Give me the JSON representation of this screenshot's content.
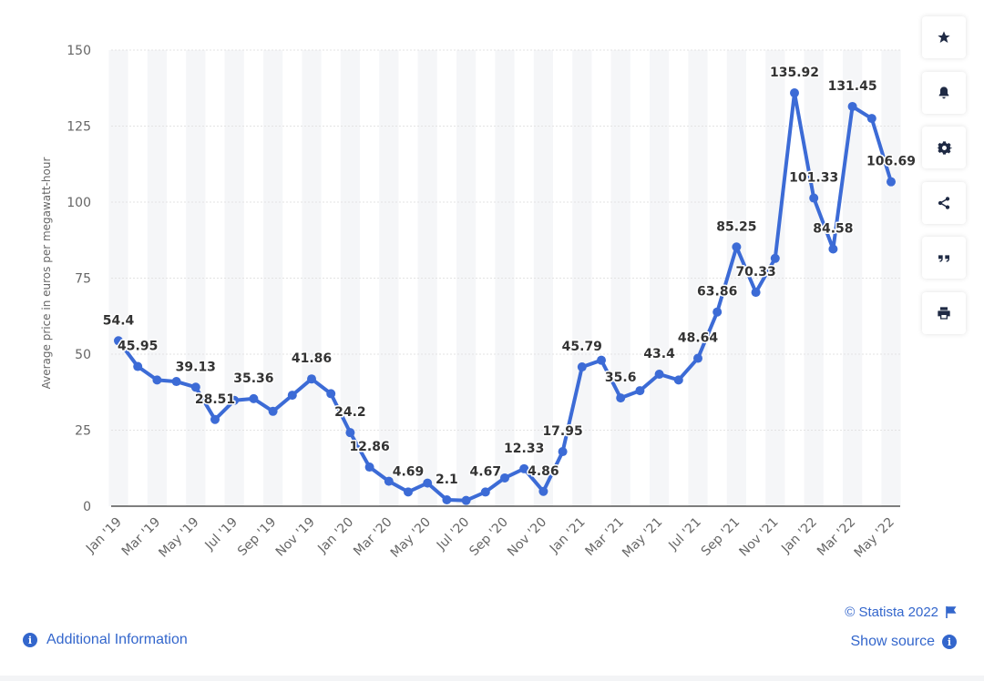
{
  "chart_data": {
    "type": "line",
    "title": "",
    "xlabel": "",
    "ylabel": "Average price in euros per megawatt-hour",
    "ylim": [
      0,
      150
    ],
    "yticks": [
      0,
      25,
      50,
      75,
      100,
      125,
      150
    ],
    "grid": true,
    "line_color": "#3c6bd6",
    "x": [
      "Jan '19",
      "Feb '19",
      "Mar '19",
      "Apr '19",
      "May '19",
      "Jun '19",
      "Jul '19",
      "Aug '19",
      "Sep '19",
      "Oct '19",
      "Nov '19",
      "Dec '19",
      "Jan '20",
      "Feb '20",
      "Mar '20",
      "Apr '20",
      "May '20",
      "Jun '20",
      "Jul '20",
      "Aug '20",
      "Sep '20",
      "Oct '20",
      "Nov '20",
      "Dec '20",
      "Jan '21",
      "Feb '21",
      "Mar '21",
      "Apr '21",
      "May '21",
      "Jun '21",
      "Jul '21",
      "Aug '21",
      "Sep '21",
      "Oct '21",
      "Nov '21",
      "Dec '21",
      "Jan '22",
      "Feb '22",
      "Mar '22",
      "Apr '22",
      "May '22"
    ],
    "x_tick_labels": [
      "Jan '19",
      "Mar '19",
      "May '19",
      "Jul '19",
      "Sep '19",
      "Nov '19",
      "Jan '20",
      "Mar '20",
      "May '20",
      "Jul '20",
      "Sep '20",
      "Nov '20",
      "Jan '21",
      "Mar '21",
      "May '21",
      "Jul '21",
      "Sep '21",
      "Nov '21",
      "Jan '22",
      "Mar '22",
      "May '22"
    ],
    "series": [
      {
        "values": [
          54.4,
          45.95,
          41.5,
          41.0,
          39.13,
          28.51,
          34.8,
          35.36,
          31.2,
          36.5,
          41.86,
          37.0,
          24.2,
          12.86,
          8.2,
          4.69,
          7.6,
          2.1,
          1.9,
          4.67,
          9.3,
          12.33,
          4.86,
          17.95,
          45.79,
          48.0,
          35.6,
          38.0,
          43.4,
          41.5,
          48.64,
          63.86,
          85.25,
          70.33,
          81.5,
          135.92,
          101.33,
          84.58,
          131.45,
          127.5,
          106.69
        ],
        "labels": [
          "54.4",
          "45.95",
          "",
          "",
          "39.13",
          "28.51",
          "",
          "35.36",
          "",
          "",
          "41.86",
          "",
          "24.2",
          "12.86",
          "",
          "4.69",
          "",
          "2.1",
          "",
          "4.67",
          "",
          "12.33",
          "4.86",
          "17.95",
          "45.79",
          "",
          "35.6",
          "",
          "43.4",
          "",
          "48.64",
          "63.86",
          "85.25",
          "70.33",
          "",
          "135.92",
          "101.33",
          "84.58",
          "131.45",
          "",
          "106.69"
        ]
      }
    ]
  },
  "toolbar": {
    "buttons": [
      {
        "name": "star-icon"
      },
      {
        "name": "bell-icon"
      },
      {
        "name": "gear-icon"
      },
      {
        "name": "share-icon"
      },
      {
        "name": "quote-icon"
      },
      {
        "name": "print-icon"
      }
    ]
  },
  "footer": {
    "additional_info": "Additional Information",
    "copyright": "© Statista 2022",
    "show_source": "Show source",
    "info_glyph": "i"
  },
  "colors": {
    "accent": "#3366cc",
    "band": "#f5f6f8",
    "grid": "#e3e3e3",
    "axis": "#333333"
  }
}
